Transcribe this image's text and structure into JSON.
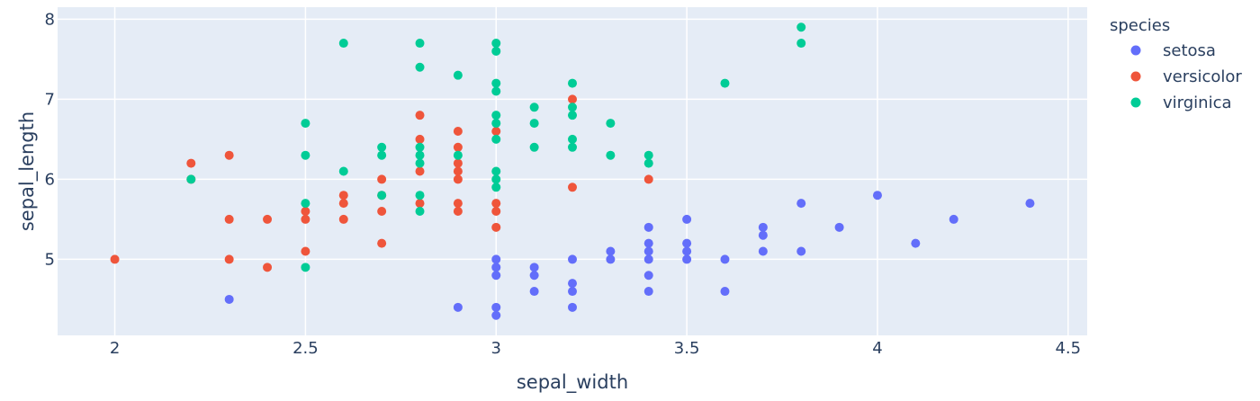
{
  "chart_data": {
    "type": "scatter",
    "xlabel": "sepal_width",
    "ylabel": "sepal_length",
    "xlim": [
      1.85,
      4.55
    ],
    "ylim": [
      4.05,
      8.15
    ],
    "xticks": [
      2,
      2.5,
      3,
      3.5,
      4,
      4.5
    ],
    "yticks": [
      5,
      6,
      7,
      8
    ],
    "grid": true,
    "legend_title": "species",
    "legend_position": "right",
    "series": [
      {
        "name": "setosa",
        "color": "#636efa",
        "points": [
          [
            2.3,
            4.5
          ],
          [
            2.9,
            4.4
          ],
          [
            3.0,
            4.3
          ],
          [
            3.0,
            4.4
          ],
          [
            3.0,
            4.8
          ],
          [
            3.0,
            4.9
          ],
          [
            3.0,
            5.0
          ],
          [
            3.1,
            4.6
          ],
          [
            3.1,
            4.8
          ],
          [
            3.1,
            4.9
          ],
          [
            3.2,
            4.4
          ],
          [
            3.2,
            4.6
          ],
          [
            3.2,
            4.7
          ],
          [
            3.2,
            5.0
          ],
          [
            3.3,
            5.0
          ],
          [
            3.3,
            5.1
          ],
          [
            3.4,
            4.6
          ],
          [
            3.4,
            4.8
          ],
          [
            3.4,
            5.0
          ],
          [
            3.4,
            5.1
          ],
          [
            3.4,
            5.2
          ],
          [
            3.4,
            5.4
          ],
          [
            3.5,
            5.0
          ],
          [
            3.5,
            5.1
          ],
          [
            3.5,
            5.2
          ],
          [
            3.5,
            5.5
          ],
          [
            3.6,
            4.6
          ],
          [
            3.6,
            5.0
          ],
          [
            3.7,
            5.1
          ],
          [
            3.7,
            5.3
          ],
          [
            3.7,
            5.4
          ],
          [
            3.8,
            5.1
          ],
          [
            3.8,
            5.7
          ],
          [
            3.9,
            5.4
          ],
          [
            4.0,
            5.8
          ],
          [
            4.1,
            5.2
          ],
          [
            4.2,
            5.5
          ],
          [
            4.4,
            5.7
          ]
        ]
      },
      {
        "name": "versicolor",
        "color": "#ef553b",
        "points": [
          [
            2.0,
            5.0
          ],
          [
            2.2,
            6.0
          ],
          [
            2.2,
            6.2
          ],
          [
            2.3,
            5.0
          ],
          [
            2.3,
            5.5
          ],
          [
            2.3,
            6.3
          ],
          [
            2.4,
            4.9
          ],
          [
            2.4,
            5.5
          ],
          [
            2.5,
            5.1
          ],
          [
            2.5,
            5.5
          ],
          [
            2.5,
            5.6
          ],
          [
            2.6,
            5.5
          ],
          [
            2.6,
            5.7
          ],
          [
            2.6,
            5.8
          ],
          [
            2.7,
            5.2
          ],
          [
            2.7,
            5.6
          ],
          [
            2.7,
            5.8
          ],
          [
            2.7,
            6.0
          ],
          [
            2.8,
            5.7
          ],
          [
            2.8,
            6.1
          ],
          [
            2.8,
            6.5
          ],
          [
            2.8,
            6.8
          ],
          [
            2.9,
            5.6
          ],
          [
            2.9,
            5.7
          ],
          [
            2.9,
            6.0
          ],
          [
            2.9,
            6.1
          ],
          [
            2.9,
            6.2
          ],
          [
            2.9,
            6.4
          ],
          [
            2.9,
            6.6
          ],
          [
            3.0,
            5.4
          ],
          [
            3.0,
            5.6
          ],
          [
            3.0,
            5.7
          ],
          [
            3.0,
            6.6
          ],
          [
            3.2,
            5.9
          ],
          [
            3.2,
            7.0
          ],
          [
            3.4,
            6.0
          ]
        ]
      },
      {
        "name": "virginica",
        "color": "#00cc96",
        "points": [
          [
            2.2,
            6.0
          ],
          [
            2.5,
            4.9
          ],
          [
            2.5,
            5.7
          ],
          [
            2.5,
            6.3
          ],
          [
            2.5,
            6.7
          ],
          [
            2.6,
            6.1
          ],
          [
            2.6,
            7.7
          ],
          [
            2.7,
            5.8
          ],
          [
            2.7,
            6.3
          ],
          [
            2.7,
            6.4
          ],
          [
            2.8,
            5.6
          ],
          [
            2.8,
            5.8
          ],
          [
            2.8,
            6.2
          ],
          [
            2.8,
            6.3
          ],
          [
            2.8,
            6.4
          ],
          [
            2.8,
            7.4
          ],
          [
            2.8,
            7.7
          ],
          [
            2.9,
            6.3
          ],
          [
            2.9,
            7.3
          ],
          [
            3.0,
            5.9
          ],
          [
            3.0,
            6.0
          ],
          [
            3.0,
            6.1
          ],
          [
            3.0,
            6.5
          ],
          [
            3.0,
            6.7
          ],
          [
            3.0,
            6.8
          ],
          [
            3.0,
            7.1
          ],
          [
            3.0,
            7.2
          ],
          [
            3.0,
            7.6
          ],
          [
            3.0,
            7.7
          ],
          [
            3.1,
            6.4
          ],
          [
            3.1,
            6.7
          ],
          [
            3.1,
            6.9
          ],
          [
            3.2,
            6.4
          ],
          [
            3.2,
            6.5
          ],
          [
            3.2,
            6.8
          ],
          [
            3.2,
            6.9
          ],
          [
            3.2,
            7.2
          ],
          [
            3.3,
            6.3
          ],
          [
            3.3,
            6.7
          ],
          [
            3.4,
            6.2
          ],
          [
            3.4,
            6.3
          ],
          [
            3.6,
            7.2
          ],
          [
            3.8,
            7.7
          ],
          [
            3.8,
            7.9
          ]
        ]
      }
    ]
  }
}
